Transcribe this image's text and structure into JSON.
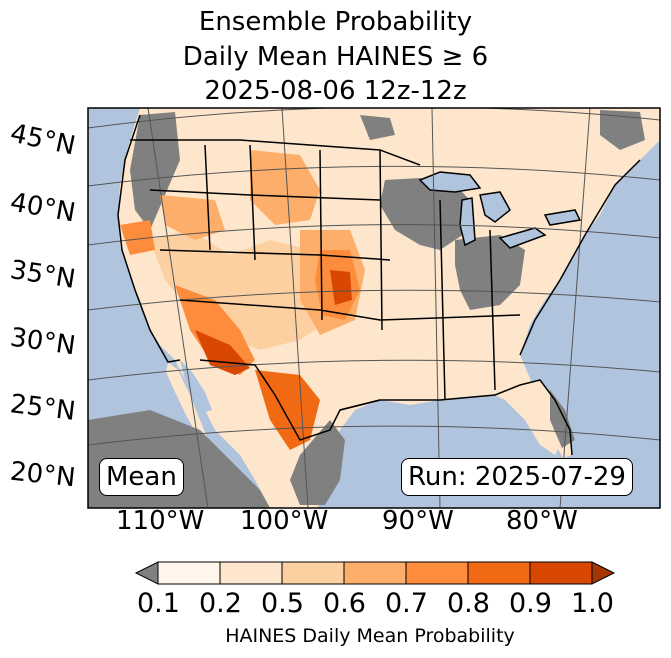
{
  "title": {
    "line1": "Ensemble Probability",
    "line2": "Daily Mean HAINES ≥ 6",
    "line3": "2025-08-06 12z-12z"
  },
  "map": {
    "lat_labels": [
      "45°N",
      "40°N",
      "35°N",
      "30°N",
      "25°N",
      "20°N"
    ],
    "lon_labels": [
      "110°W",
      "100°W",
      "90°W",
      "80°W"
    ],
    "stat_label": "Mean",
    "run_label": "Run: 2025-07-29",
    "colors": {
      "ocean": "#b0c4de",
      "land": "#fde6cc",
      "missing": "#808080",
      "lakes": "#b0c4de",
      "borders": "#000000",
      "gridlines": "#555555"
    }
  },
  "colorbar": {
    "ticks": [
      "0.1",
      "0.2",
      "0.5",
      "0.6",
      "0.7",
      "0.8",
      "0.9",
      "1.0"
    ],
    "colors": [
      "#808080",
      "#fff5eb",
      "#fee6ce",
      "#fdd0a2",
      "#fdae6b",
      "#fd8d3c",
      "#f16913",
      "#d94801",
      "#a63603"
    ],
    "label": "HAINES Daily Mean Probability"
  }
}
